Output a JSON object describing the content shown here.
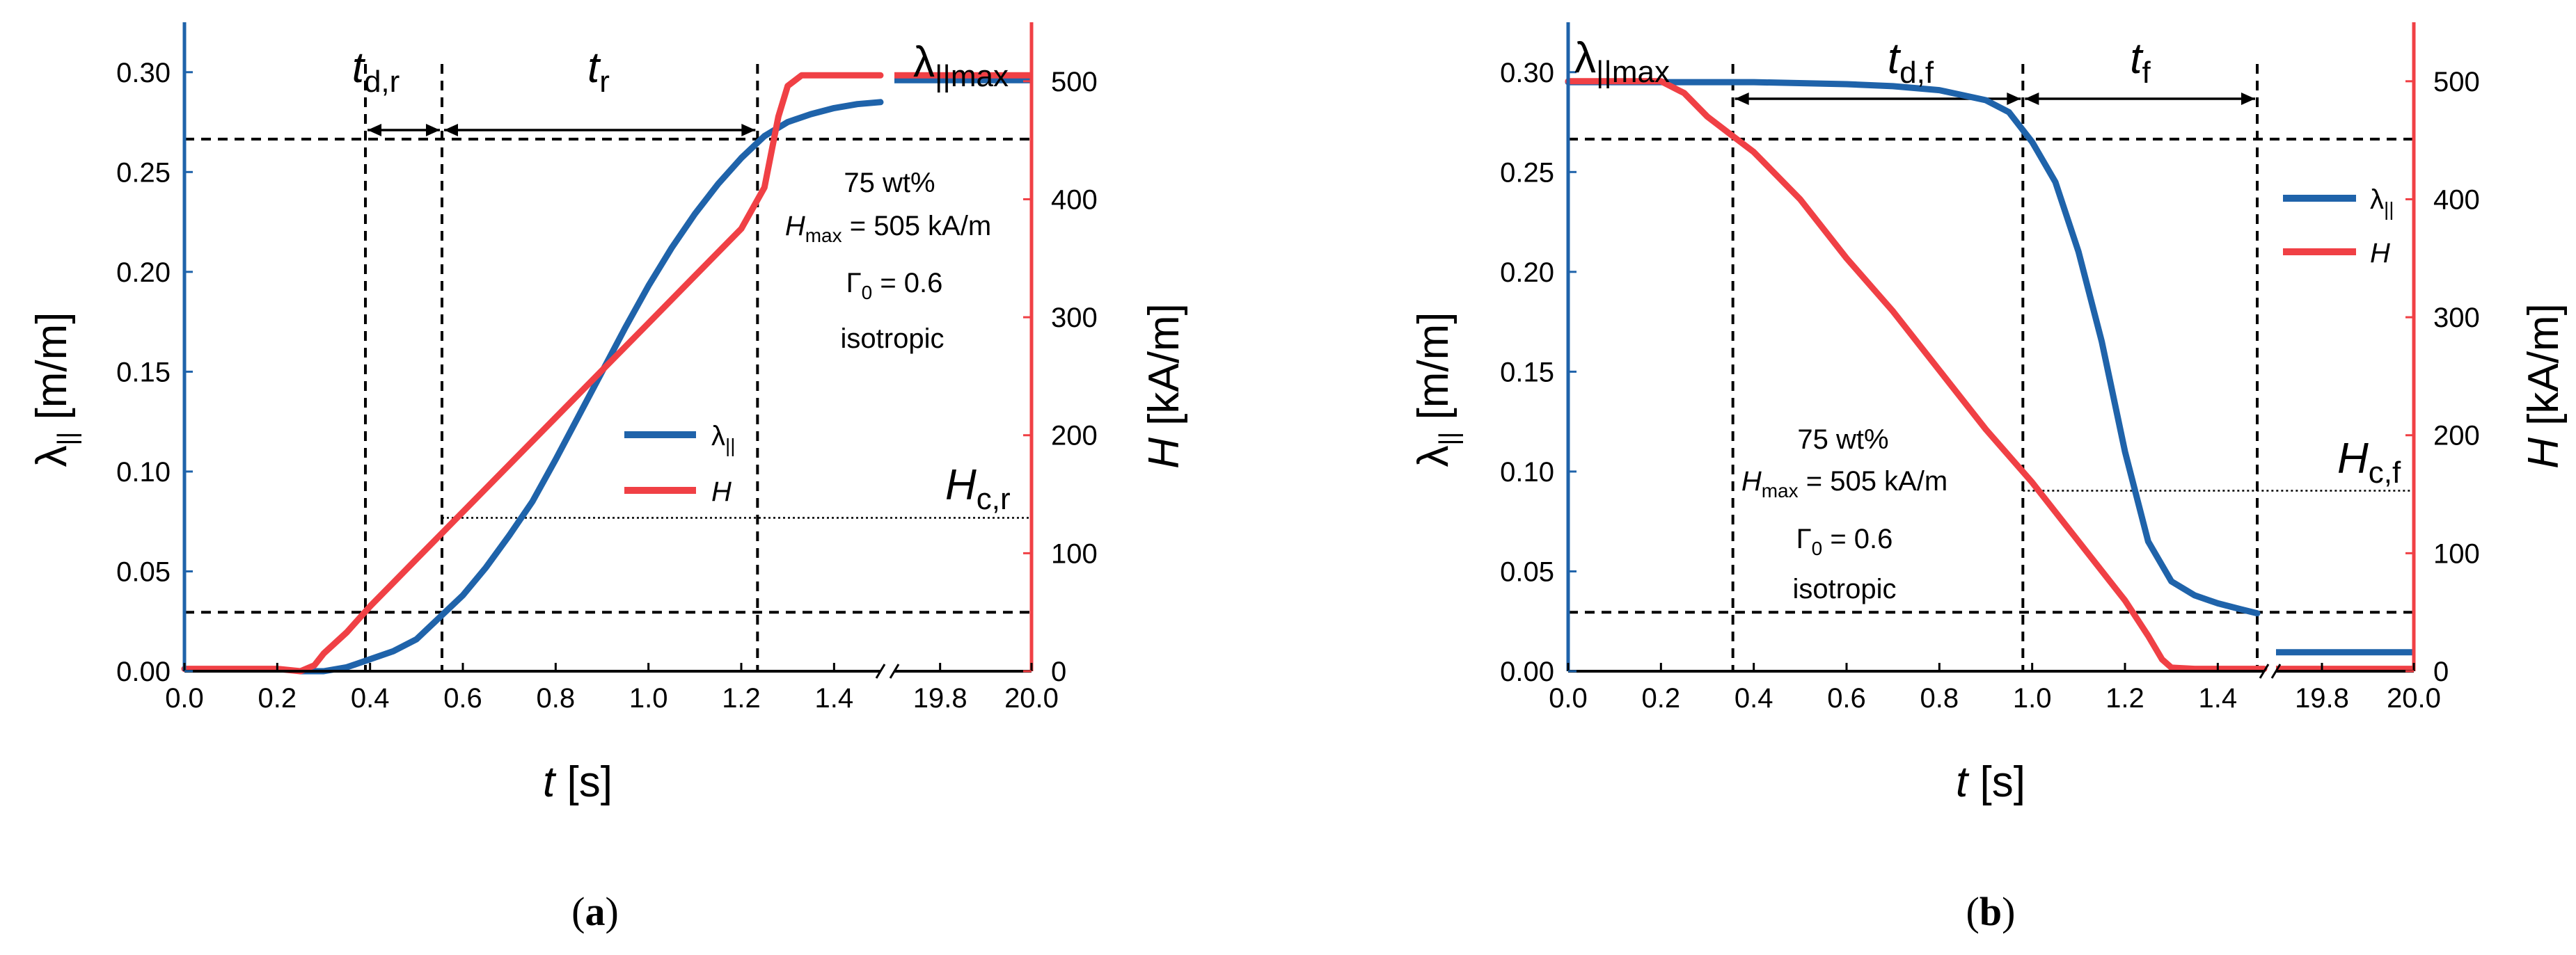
{
  "chart_data": [
    {
      "type": "line",
      "panel": "(a)",
      "panel_label": {
        "open": "(",
        "letter": "a",
        "close": ")"
      },
      "x_ticks": [
        "0.0",
        "0.2",
        "0.4",
        "0.6",
        "0.8",
        "1.0",
        "1.2",
        "1.4",
        "19.8",
        "20.0"
      ],
      "y_left_ticks": [
        "0.00",
        "0.05",
        "0.10",
        "0.15",
        "0.20",
        "0.25",
        "0.30"
      ],
      "y_right_ticks": [
        "0",
        "100",
        "200",
        "300",
        "400",
        "500"
      ],
      "xlabel": {
        "var": "t",
        "unit": " [s]"
      },
      "ylabel_left": {
        "var": "λ",
        "sub": "||",
        "unit": " [m/m]"
      },
      "ylabel_right": {
        "var": "H",
        "unit": " [kA/m]"
      },
      "ylim_left": [
        0,
        0.325
      ],
      "ylim_right": [
        0,
        550
      ],
      "xlim_main": [
        0,
        1.5
      ],
      "xlim_break": [
        19.7,
        20.0
      ],
      "legend": [
        {
          "name": "λ||",
          "label": "λ",
          "sub": "||",
          "color": "#1f63aa"
        },
        {
          "name": "H",
          "label": "H",
          "sub": "",
          "color": "#f04045"
        }
      ],
      "annotation": {
        "material": "75 wt%",
        "hmax_var": "H",
        "hmax_sub": "max",
        "hmax_value": " = 505 kA/m",
        "gamma": "Γ",
        "gamma_sub": "0",
        "gamma_value": " = 0.6",
        "kind": "isotropic"
      },
      "labels": {
        "interval1_var": "t",
        "interval1_sub": "d,r",
        "interval2_var": "t",
        "interval2_sub": "r",
        "lmax_var": "λ",
        "lmax_sub": "||max",
        "hc_var": "H",
        "hc_sub": "c,r"
      },
      "markers_x": [
        0.39,
        0.555,
        1.235
      ],
      "dashed_levels_lambda": [
        0.0295,
        0.2665
      ],
      "hc_level_H": 130,
      "series": [
        {
          "name": "λ||",
          "axis": "left",
          "color": "#1f63aa",
          "x": [
            0.25,
            0.3,
            0.35,
            0.4,
            0.45,
            0.5,
            0.55,
            0.6,
            0.65,
            0.7,
            0.75,
            0.8,
            0.85,
            0.9,
            0.95,
            1.0,
            1.05,
            1.1,
            1.15,
            1.2,
            1.25,
            1.3,
            1.35,
            1.4,
            1.45,
            1.5
          ],
          "y": [
            0.0,
            0.0,
            0.002,
            0.006,
            0.01,
            0.016,
            0.027,
            0.038,
            0.052,
            0.068,
            0.085,
            0.106,
            0.128,
            0.15,
            0.172,
            0.193,
            0.212,
            0.229,
            0.244,
            0.257,
            0.268,
            0.275,
            0.279,
            0.282,
            0.284,
            0.285
          ],
          "x_break": [
            19.7,
            20.0
          ],
          "y_break": [
            0.296,
            0.296
          ]
        },
        {
          "name": "H",
          "axis": "right",
          "color": "#f04045",
          "x": [
            0.0,
            0.1,
            0.2,
            0.25,
            0.28,
            0.3,
            0.35,
            0.4,
            0.45,
            0.5,
            0.55,
            0.6,
            0.7,
            0.8,
            0.9,
            1.0,
            1.1,
            1.2,
            1.25,
            1.28,
            1.3,
            1.33,
            1.4,
            1.5
          ],
          "y": [
            2,
            2,
            2,
            0,
            5,
            15,
            33,
            55,
            75,
            95,
            115,
            135,
            175,
            215,
            255,
            295,
            335,
            375,
            410,
            470,
            496,
            505,
            505,
            505
          ],
          "x_break": [
            19.7,
            20.0
          ],
          "y_break": [
            505,
            505
          ]
        }
      ]
    },
    {
      "type": "line",
      "panel": "(b)",
      "panel_label": {
        "open": "(",
        "letter": "b",
        "close": ")"
      },
      "x_ticks": [
        "0.0",
        "0.2",
        "0.4",
        "0.6",
        "0.8",
        "1.0",
        "1.2",
        "1.4",
        "19.8",
        "20.0"
      ],
      "y_left_ticks": [
        "0.00",
        "0.05",
        "0.10",
        "0.15",
        "0.20",
        "0.25",
        "0.30"
      ],
      "y_right_ticks": [
        "0",
        "100",
        "200",
        "300",
        "400",
        "500"
      ],
      "xlabel": {
        "var": "t",
        "unit": " [s]"
      },
      "ylabel_left": {
        "var": "λ",
        "sub": "||",
        "unit": " [m/m]"
      },
      "ylabel_right": {
        "var": "H",
        "unit": " [kA/m]"
      },
      "ylim_left": [
        0,
        0.325
      ],
      "ylim_right": [
        0,
        550
      ],
      "xlim_main": [
        0,
        1.5
      ],
      "xlim_break": [
        19.7,
        20.0
      ],
      "legend": [
        {
          "name": "λ||",
          "label": "λ",
          "sub": "||",
          "color": "#1f63aa"
        },
        {
          "name": "H",
          "label": "H",
          "sub": "",
          "color": "#f04045"
        }
      ],
      "annotation": {
        "material": "75 wt%",
        "hmax_var": "H",
        "hmax_sub": "max",
        "hmax_value": " = 505 kA/m",
        "gamma": "Γ",
        "gamma_sub": "0",
        "gamma_value": " = 0.6",
        "kind": "isotropic"
      },
      "labels": {
        "interval1_var": "t",
        "interval1_sub": "d,f",
        "interval2_var": "t",
        "interval2_sub": "f",
        "lmax_var": "λ",
        "lmax_sub": "||max",
        "hc_var": "H",
        "hc_sub": "c,f"
      },
      "markers_x": [
        0.355,
        0.98,
        1.485
      ],
      "dashed_levels_lambda": [
        0.0295,
        0.2665
      ],
      "hc_level_H": 153,
      "series": [
        {
          "name": "λ||",
          "axis": "left",
          "color": "#1f63aa",
          "x": [
            0.0,
            0.2,
            0.4,
            0.6,
            0.7,
            0.8,
            0.9,
            0.95,
            1.0,
            1.05,
            1.1,
            1.15,
            1.2,
            1.25,
            1.3,
            1.35,
            1.4,
            1.45,
            1.485
          ],
          "y": [
            0.295,
            0.295,
            0.295,
            0.294,
            0.293,
            0.291,
            0.286,
            0.28,
            0.265,
            0.245,
            0.21,
            0.165,
            0.11,
            0.065,
            0.045,
            0.038,
            0.034,
            0.031,
            0.029
          ],
          "x_break": [
            19.7,
            20.0
          ],
          "y_break": [
            0.0095,
            0.0095
          ]
        },
        {
          "name": "H",
          "axis": "right",
          "color": "#f04045",
          "x": [
            0.0,
            0.2,
            0.25,
            0.3,
            0.35,
            0.4,
            0.5,
            0.6,
            0.7,
            0.8,
            0.9,
            1.0,
            1.1,
            1.2,
            1.25,
            1.28,
            1.3,
            1.35,
            1.45,
            1.5
          ],
          "y": [
            500,
            500,
            490,
            470,
            455,
            440,
            400,
            350,
            305,
            255,
            205,
            160,
            110,
            60,
            30,
            10,
            3,
            2,
            2,
            2
          ],
          "x_break": [
            19.7,
            20.0
          ],
          "y_break": [
            2,
            2
          ]
        }
      ]
    }
  ]
}
